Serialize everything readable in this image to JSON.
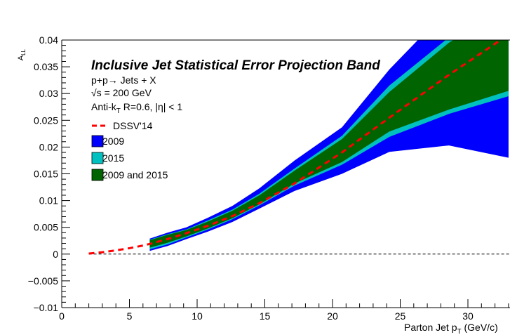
{
  "chart_data": {
    "type": "area",
    "title": "Inclusive Jet Statistical Error Projection Band",
    "annotations": [
      "p+p→ Jets + X",
      "√s = 200 GeV",
      "Anti-kT R=0.6, |η| < 1"
    ],
    "ylabel": "A_LL",
    "xlabel": "Parton Jet p_T (GeV/c)",
    "xlim": [
      0,
      33
    ],
    "ylim": [
      -0.01,
      0.04
    ],
    "xticks": [
      0,
      5,
      10,
      15,
      20,
      25,
      30
    ],
    "xtick_labels": [
      "0",
      "5",
      "10",
      "15",
      "20",
      "25",
      "30"
    ],
    "yticks": [
      -0.01,
      -0.005,
      0,
      0.005,
      0.01,
      0.015,
      0.02,
      0.025,
      0.03,
      0.035,
      0.04
    ],
    "ytick_labels": [
      "−0.01",
      "−0.005",
      "0",
      "0.005",
      "0.01",
      "0.015",
      "0.02",
      "0.025",
      "0.03",
      "0.035",
      "0.04"
    ],
    "zero_line": true,
    "grid": false,
    "legend": {
      "placement": "top-left",
      "entries": [
        {
          "label": "DSSV'14",
          "color": "#ff0000",
          "style": "dashed-line"
        },
        {
          "label": "2009",
          "color": "#0000ff",
          "style": "box"
        },
        {
          "label": "2015",
          "color": "#00c0c0",
          "style": "box"
        },
        {
          "label": "2009 and 2015",
          "color": "#006400",
          "style": "box"
        }
      ]
    },
    "x": [
      6.5,
      7.8,
      9.2,
      10.8,
      12.6,
      14.6,
      17.2,
      20.7,
      24.2,
      28.6,
      33.0
    ],
    "series": [
      {
        "name": "DSSV'14",
        "color": "#ff0000",
        "x": [
          2.0,
          3.0,
          4.0,
          5.0,
          6.0,
          6.5,
          7.8,
          9.2,
          10.8,
          12.6,
          14.6,
          17.2,
          20.7,
          24.2,
          28.6,
          33.0
        ],
        "values": [
          0.0001,
          0.00035,
          0.0007,
          0.0011,
          0.0016,
          0.0019,
          0.0028,
          0.0039,
          0.0053,
          0.0071,
          0.0095,
          0.0132,
          0.019,
          0.0255,
          0.0335,
          0.041
        ]
      },
      {
        "name": "2009",
        "color": "#0000ff",
        "upper": [
          0.0029,
          0.004,
          0.005,
          0.0068,
          0.009,
          0.0123,
          0.0175,
          0.0237,
          0.0345,
          0.046,
          0.055
        ],
        "lower": [
          0.0006,
          0.0015,
          0.0028,
          0.0042,
          0.006,
          0.0085,
          0.0118,
          0.015,
          0.0191,
          0.0203,
          0.018
        ]
      },
      {
        "name": "2015",
        "color": "#00c0c0",
        "upper": [
          0.0027,
          0.0037,
          0.0046,
          0.0063,
          0.0083,
          0.0113,
          0.016,
          0.0221,
          0.0315,
          0.0405,
          0.047
        ],
        "lower": [
          0.0009,
          0.0018,
          0.0031,
          0.0046,
          0.0065,
          0.0091,
          0.0128,
          0.0167,
          0.0219,
          0.0262,
          0.0295
        ]
      },
      {
        "name": "2009 and 2015",
        "color": "#006400",
        "upper": [
          0.0026,
          0.0036,
          0.0045,
          0.0061,
          0.0081,
          0.011,
          0.0156,
          0.0215,
          0.0303,
          0.0395,
          0.046
        ],
        "lower": [
          0.0012,
          0.0021,
          0.0033,
          0.0048,
          0.0067,
          0.0093,
          0.0132,
          0.0172,
          0.0229,
          0.027,
          0.0305
        ]
      }
    ]
  }
}
